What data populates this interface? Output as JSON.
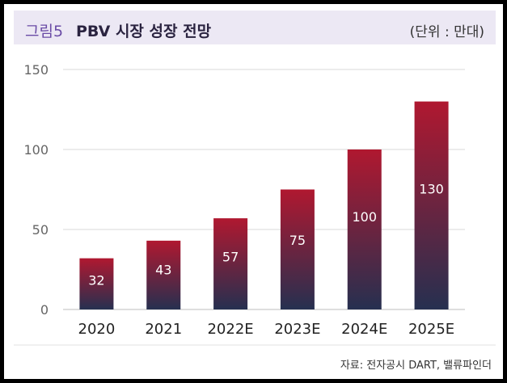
{
  "header": {
    "figure_label": "그림5",
    "title": "PBV 시장 성장 전망",
    "unit": "(단위 : 만대)"
  },
  "source": "자료: 전자공시 DART, 밸류파인더",
  "colors": {
    "bar_top": "#b01830",
    "bar_bottom": "#263050",
    "label_text": "#ffffff",
    "grid": "#d8d8d8"
  },
  "chart_data": {
    "type": "bar",
    "categories": [
      "2020",
      "2021",
      "2022E",
      "2023E",
      "2024E",
      "2025E"
    ],
    "values": [
      32,
      43,
      57,
      75,
      100,
      130
    ],
    "ylim": [
      0,
      150
    ],
    "yticks": [
      0,
      50,
      100,
      150
    ],
    "grid": true,
    "legend": "none"
  }
}
